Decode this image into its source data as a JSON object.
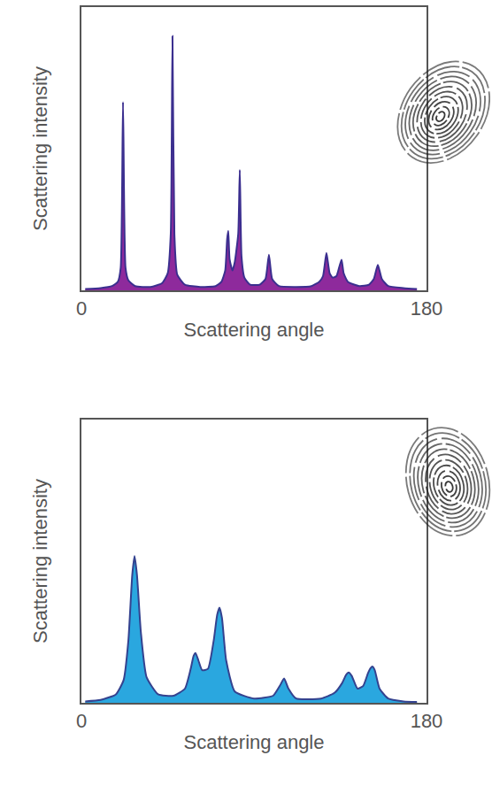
{
  "chart_data": [
    {
      "type": "area",
      "x_label": "Scattering angle",
      "y_label": "Scattering intensity",
      "x": [
        2,
        10,
        16,
        19,
        20.5,
        21.7,
        23,
        24.5,
        28,
        36,
        42,
        45,
        46.6,
        47.5,
        48.5,
        50,
        54,
        62,
        70,
        73,
        75,
        76,
        76.6,
        77.3,
        78.8,
        80,
        81.8,
        82.6,
        83.5,
        85,
        88,
        93,
        96,
        97.8,
        99.5,
        103,
        112,
        120,
        124,
        126,
        127.8,
        129.5,
        131,
        133,
        134.8,
        135.7,
        136.8,
        139,
        145,
        150,
        152.5,
        154.6,
        156.7,
        160,
        168,
        175
      ],
      "values": [
        0.5,
        0.8,
        1.5,
        3,
        8,
        66.5,
        8,
        3.5,
        1.5,
        1.2,
        2.5,
        6,
        20,
        89.8,
        20,
        5.5,
        2,
        1.2,
        1.5,
        3,
        7,
        18,
        21,
        11,
        7,
        10,
        20,
        42.5,
        12,
        4.5,
        2,
        2,
        4,
        12.6,
        4,
        1.5,
        1.2,
        1.5,
        3,
        5,
        13.2,
        6,
        4.5,
        5,
        9,
        10.8,
        6,
        3,
        1.5,
        2,
        4,
        9,
        4,
        1.5,
        0.8,
        0.5
      ],
      "color": "#8e2a9c",
      "xlim": [
        0,
        180
      ],
      "xticks": [
        0,
        180
      ],
      "ylim": [
        0,
        100
      ],
      "tick_labels": "x",
      "grid": false
    },
    {
      "type": "area",
      "x_label": "Scattering angle",
      "y_label": "Scattering intensity",
      "x": [
        2,
        10,
        18,
        22,
        24.5,
        26.5,
        27.7,
        29,
        31,
        34,
        40,
        48,
        54,
        57,
        58.5,
        59.5,
        61,
        63,
        66,
        69,
        70.8,
        72,
        73.3,
        75.5,
        80,
        90,
        100,
        103.5,
        105.7,
        108,
        112,
        125,
        132,
        136,
        138,
        139.4,
        141,
        144,
        147,
        149.5,
        150.8,
        151.8,
        153,
        155.5,
        160,
        168,
        175
      ],
      "values": [
        0.5,
        1,
        3,
        8,
        22,
        45,
        51.8,
        45,
        25,
        9,
        3,
        2.5,
        5,
        12,
        16.5,
        17.6,
        15,
        11.5,
        12,
        22,
        31,
        33.6,
        30,
        15,
        4,
        1.5,
        2.5,
        6,
        8.6,
        5,
        1.5,
        1.5,
        3.5,
        7,
        9.8,
        10.7,
        9.5,
        5,
        6,
        10.5,
        12.2,
        12.8,
        11.5,
        5,
        1.5,
        0.5,
        0.3
      ],
      "color": "#2aa7df",
      "xlim": [
        0,
        180
      ],
      "xticks": [
        0,
        180
      ],
      "ylim": [
        0,
        100
      ],
      "tick_labels": "x",
      "grid": false
    }
  ]
}
